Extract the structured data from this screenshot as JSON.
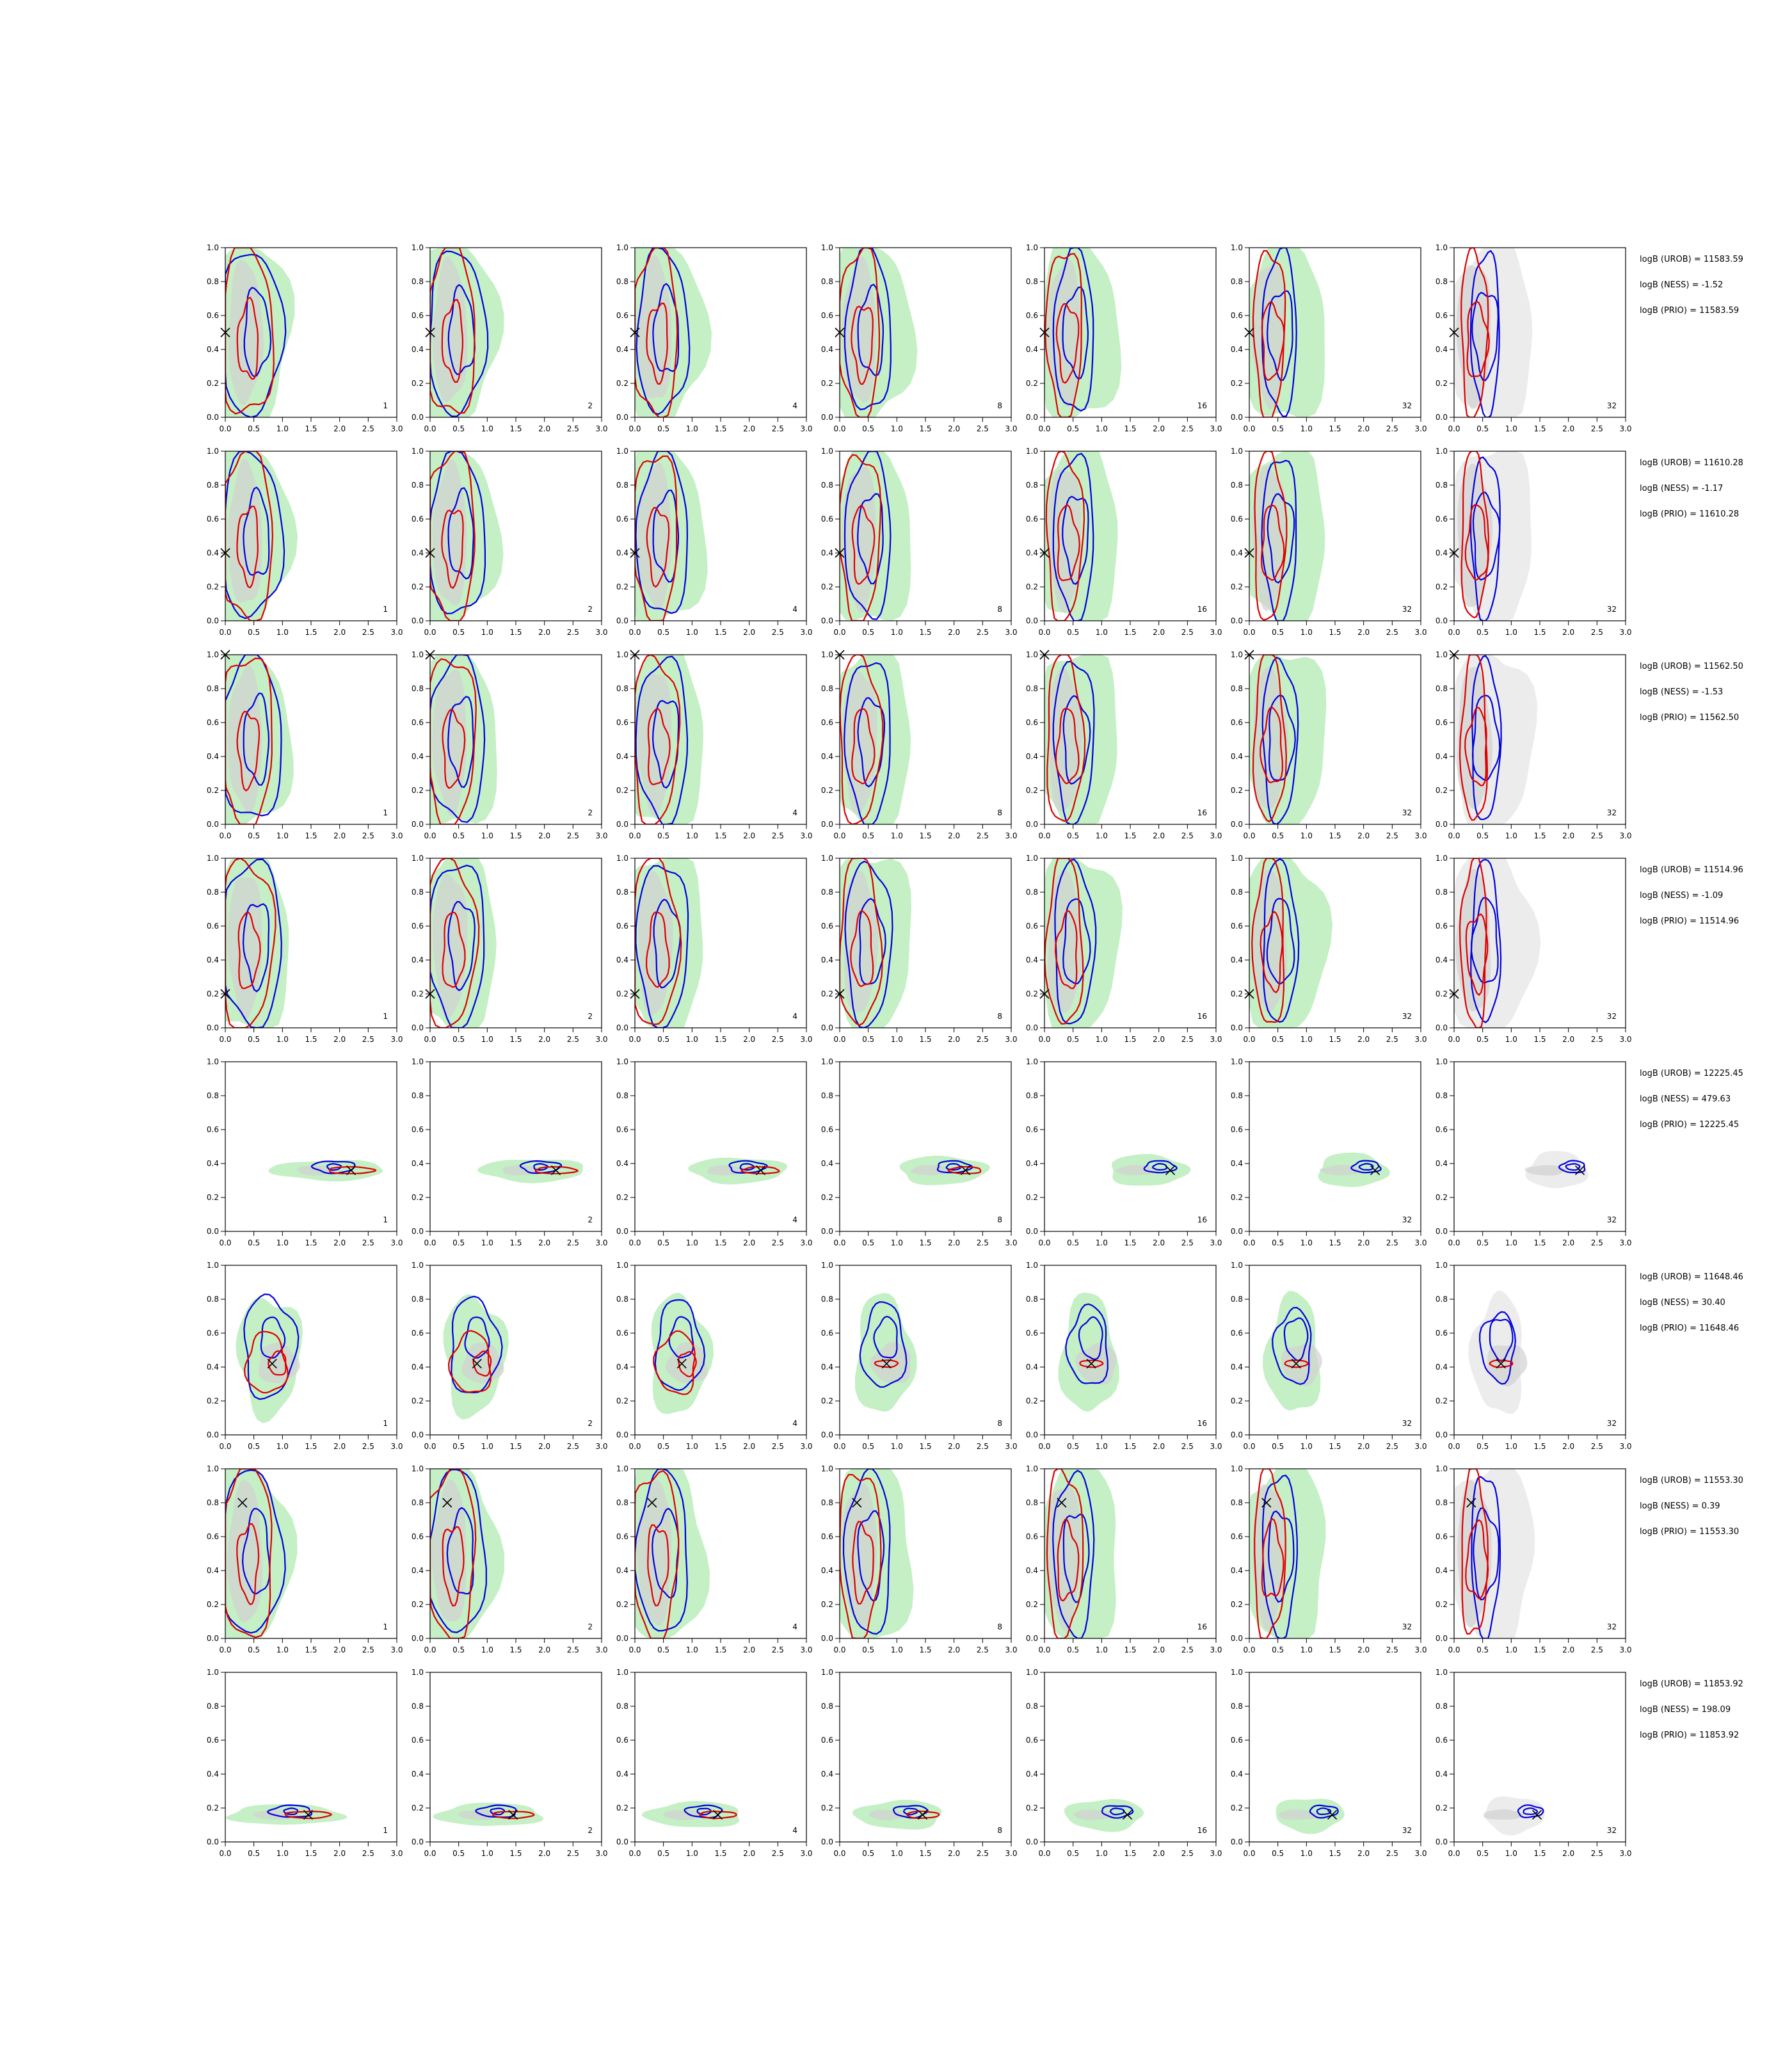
{
  "figure": {
    "type": "contour-grid",
    "axis_x_ticks": [
      "0.0",
      "0.5",
      "1.0",
      "1.5",
      "2.0",
      "2.5",
      "3.0"
    ],
    "axis_y_ticks": [
      "0.0",
      "0.2",
      "0.4",
      "0.6",
      "0.8",
      "1.0"
    ],
    "xlim": [
      0,
      3
    ],
    "ylim": [
      0,
      1
    ],
    "column_labels": [
      "1",
      "2",
      "4",
      "8",
      "16",
      "32",
      "32"
    ],
    "colors": {
      "green_fill": "#c5efc5",
      "grey_fill": "#d2d2d2",
      "blue": "#0000dd",
      "red": "#dd0000",
      "marker": "#000000"
    }
  },
  "chart_data": {
    "type": "contour",
    "rows": [
      {
        "truth": {
          "x": 0.0,
          "y": 0.5
        },
        "shape": "vert",
        "stats": [
          "logB (UROB) = 11583.59",
          "logB (NESS) = -1.52",
          "logB (PRIO) = 11583.59"
        ]
      },
      {
        "truth": {
          "x": 0.0,
          "y": 0.4
        },
        "shape": "vert",
        "stats": [
          "logB (UROB) = 11610.28",
          "logB (NESS) = -1.17",
          "logB (PRIO) = 11610.28"
        ]
      },
      {
        "truth": {
          "x": 0.0,
          "y": 1.0
        },
        "shape": "vert",
        "stats": [
          "logB (UROB) = 11562.50",
          "logB (NESS) = -1.53",
          "logB (PRIO) = 11562.50"
        ]
      },
      {
        "truth": {
          "x": 0.0,
          "y": 0.2
        },
        "shape": "vert",
        "stats": [
          "logB (UROB) = 11514.96",
          "logB (NESS) = -1.09",
          "logB (PRIO) = 11514.96"
        ]
      },
      {
        "truth": {
          "x": 2.2,
          "y": 0.36
        },
        "shape": "horiz",
        "stats": [
          "logB (UROB) = 12225.45",
          "logB (NESS) = 479.63",
          "logB (PRIO) = 12225.45"
        ]
      },
      {
        "truth": {
          "x": 0.82,
          "y": 0.42
        },
        "shape": "blob",
        "stats": [
          "logB (UROB) = 11648.46",
          "logB (NESS) = 30.40",
          "logB (PRIO) = 11648.46"
        ]
      },
      {
        "truth": {
          "x": 0.3,
          "y": 0.8
        },
        "shape": "vert",
        "stats": [
          "logB (UROB) = 11553.30",
          "logB (NESS) = 0.39",
          "logB (PRIO) = 11553.30"
        ]
      },
      {
        "truth": {
          "x": 1.45,
          "y": 0.16
        },
        "shape": "horiz",
        "stats": [
          "logB (UROB) = 11853.92",
          "logB (NESS) = 198.09",
          "logB (PRIO) = 11853.92"
        ]
      }
    ]
  }
}
